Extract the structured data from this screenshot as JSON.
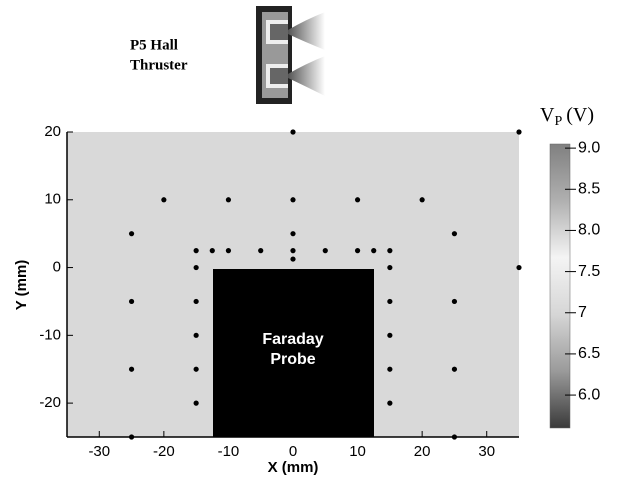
{
  "chart_data": {
    "type": "scatter",
    "annotation_lines": [
      "P5 Hall",
      "Thruster"
    ],
    "xlabel": "X (mm)",
    "ylabel": "Y (mm)",
    "x": [
      0,
      35,
      -20,
      -10,
      0,
      10,
      20,
      -25,
      0,
      25,
      -15,
      -12.5,
      -10,
      -5,
      0,
      5,
      10,
      12.5,
      15,
      0,
      -15,
      15,
      35,
      -25,
      -15,
      15,
      25,
      -15,
      15,
      -25,
      -15,
      15,
      25,
      -15,
      15,
      -25,
      25
    ],
    "y": [
      20,
      20,
      10,
      10,
      10,
      10,
      10,
      5,
      5,
      5,
      2.5,
      2.5,
      2.5,
      2.5,
      2.5,
      2.5,
      2.5,
      2.5,
      2.5,
      1.25,
      0,
      0,
      0,
      -5,
      -5,
      -5,
      -5,
      -10,
      -10,
      -15,
      -15,
      -15,
      -15,
      -20,
      -20,
      -25,
      -25
    ],
    "color": "#000000",
    "background": "#d9d9d9",
    "xlim": [
      -35,
      35
    ],
    "ylim": [
      -25,
      20
    ],
    "xticks": [
      -30,
      -20,
      -10,
      0,
      10,
      20,
      30
    ],
    "yticks": [
      -20,
      -10,
      0,
      10,
      20
    ],
    "probe_lines": [
      "Faraday",
      "Probe"
    ],
    "colorbar": {
      "symbol": "V",
      "subscript": "P",
      "unit": "(V)",
      "lim": [
        5.6,
        9.05
      ],
      "ticks": [
        {
          "value": 6,
          "label": "6.0"
        },
        6.5,
        7,
        {
          "value": 7.5,
          "label": "7.5"
        },
        {
          "value": 8,
          "label": "8.0"
        },
        8.5,
        {
          "value": 9,
          "label": "9.0"
        }
      ],
      "colormap": [
        "#3a3a3a",
        "#9a9a9a",
        "#d6d6d6",
        "#f4f4f4",
        "#b0b0b0",
        "#808080"
      ]
    }
  }
}
